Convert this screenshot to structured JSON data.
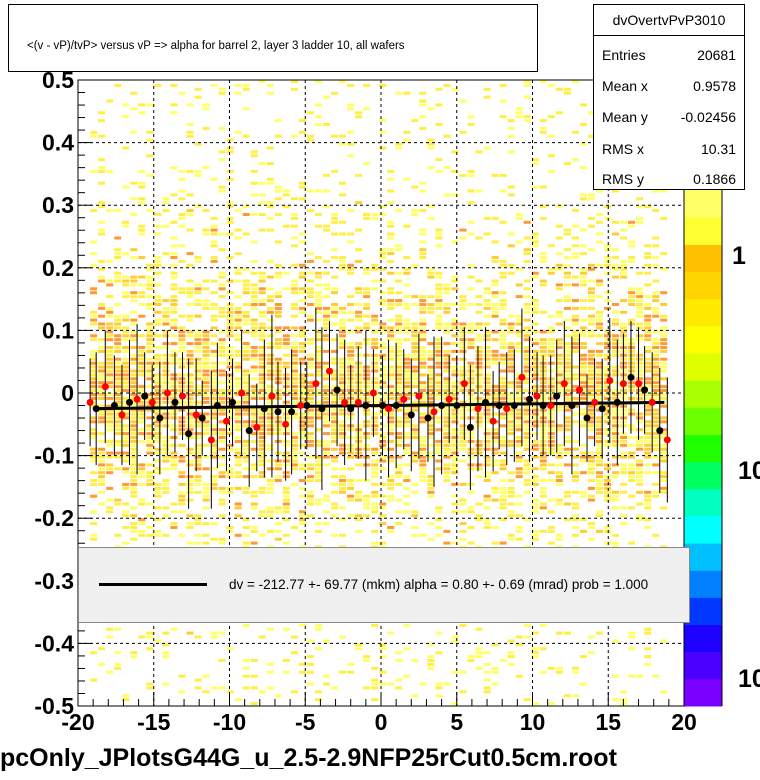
{
  "title": "<(v - vP)/tvP> versus   vP => alpha for barrel 2, layer 3 ladder 10, all wafers",
  "stats": {
    "name": "dvOvertvPvP3010",
    "rows": [
      {
        "label": "Entries",
        "value": "20681"
      },
      {
        "label": "Mean x",
        "value": "0.9578"
      },
      {
        "label": "Mean y",
        "value": "-0.02456"
      },
      {
        "label": "RMS x",
        "value": "10.31"
      },
      {
        "label": "RMS y",
        "value": "0.1866"
      }
    ]
  },
  "legend": {
    "text": "dv = -212.77 +- 69.77 (mkm) alpha =    0.80 +-  0.69 (mrad) prob = 1.000"
  },
  "file_label": "pcOnly_JPlotsG44G_u_2.5-2.9NFP25rCut0.5cm.root",
  "colors": {
    "black_points": "#000000",
    "red_points": "#ff0000",
    "fit_line": "#000000",
    "heatmap_low": "#ffff66",
    "heatmap_high": "#ff6600"
  },
  "chart_data": {
    "type": "scatter",
    "title": "<(v - vP)/tvP> versus   vP => alpha for barrel 2, layer 3 ladder 10, all wafers",
    "xlim": [
      -20,
      20
    ],
    "ylim": [
      -0.5,
      0.5
    ],
    "x_ticks": [
      "-20",
      "-15",
      "-10",
      "-5",
      "0",
      "5",
      "10",
      "15",
      "20"
    ],
    "y_ticks": [
      "-0.5",
      "-0.4",
      "-0.3",
      "-0.2",
      "-0.1",
      "0",
      "0.1",
      "0.2",
      "0.3",
      "0.4",
      "0.5"
    ],
    "colorbar_labels": [
      "1",
      "10",
      "10"
    ],
    "grid": true,
    "heatmap": "2D histogram, yellow-orange density concentrated near y = 0",
    "fit": {
      "x": [
        -19,
        18.7
      ],
      "y": [
        -0.025,
        -0.015
      ]
    },
    "series": [
      {
        "color": "black",
        "x": [
          -18.8,
          -17.6,
          -16.6,
          -15.6,
          -14.6,
          -13.6,
          -12.7,
          -11.8,
          -10.8,
          -9.8,
          -8.7,
          -7.7,
          -6.8,
          -5.9,
          -4.9,
          -3.9,
          -2.9,
          -2.0,
          -1.0,
          0.1,
          1.0,
          2.0,
          3.1,
          4.0,
          5.0,
          5.9,
          6.9,
          7.8,
          8.8,
          9.8,
          10.7,
          11.6,
          12.6,
          13.6,
          14.6,
          15.6,
          16.5,
          17.4,
          18.4
        ],
        "y": [
          -0.025,
          -0.02,
          -0.015,
          -0.005,
          -0.04,
          -0.015,
          -0.065,
          -0.04,
          -0.02,
          -0.015,
          -0.06,
          -0.025,
          -0.03,
          -0.03,
          -0.02,
          -0.025,
          0.005,
          -0.025,
          -0.02,
          -0.02,
          -0.02,
          -0.035,
          -0.04,
          -0.02,
          -0.02,
          -0.055,
          -0.015,
          -0.02,
          -0.02,
          -0.01,
          -0.02,
          -0.005,
          -0.02,
          -0.04,
          -0.025,
          -0.015,
          0.025,
          0.005,
          -0.06
        ]
      },
      {
        "color": "red",
        "x": [
          -19.2,
          -18.2,
          -17.1,
          -16.1,
          -15.1,
          -14.1,
          -13.1,
          -12.2,
          -11.2,
          -10.2,
          -9.2,
          -8.2,
          -7.2,
          -6.3,
          -5.3,
          -4.3,
          -3.4,
          -2.4,
          -1.5,
          -0.5,
          0.5,
          1.5,
          2.5,
          3.5,
          4.5,
          5.5,
          6.4,
          7.4,
          8.3,
          9.3,
          10.3,
          11.2,
          12.1,
          13.1,
          14.1,
          15.1,
          16.0,
          17.0,
          17.9,
          18.9
        ],
        "y": [
          -0.015,
          0.01,
          -0.035,
          -0.01,
          -0.015,
          0.0,
          -0.005,
          -0.035,
          -0.075,
          -0.045,
          0.0,
          -0.055,
          -0.005,
          -0.05,
          -0.02,
          0.015,
          0.035,
          -0.015,
          -0.015,
          0.0,
          -0.025,
          -0.01,
          -0.005,
          -0.03,
          -0.01,
          0.015,
          -0.025,
          -0.045,
          -0.025,
          0.025,
          -0.005,
          -0.02,
          0.015,
          0.005,
          -0.015,
          0.02,
          0.015,
          0.015,
          -0.015,
          -0.075
        ]
      }
    ]
  }
}
